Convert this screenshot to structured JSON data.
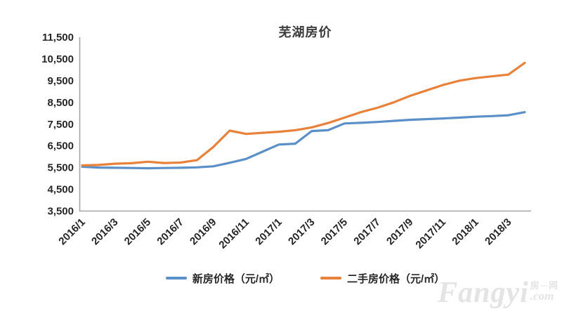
{
  "title": "芜湖房价",
  "watermark": {
    "brand": "Fangyi",
    "side_text": "房─网",
    "suffix": ".com"
  },
  "colors": {
    "axis": "#a6a6a6",
    "new_house": "#5b8fc7",
    "secondhand_house": "#e8813a",
    "text": "#262626"
  },
  "legend": {
    "items": [
      {
        "label": "新房价格（元/㎡）",
        "color": "#5b8fc7"
      },
      {
        "label": "二手房价格（元/㎡）",
        "color": "#e8813a"
      }
    ]
  },
  "chart_data": {
    "type": "line",
    "title": "芜湖房价",
    "xlabel": "",
    "ylabel": "",
    "ylim": [
      3500,
      11500
    ],
    "y_tick_step": 1000,
    "grid": false,
    "legend_position": "bottom",
    "y_tick_labels": [
      "3,500",
      "4,500",
      "5,500",
      "6,500",
      "7,500",
      "8,500",
      "9,500",
      "10,500",
      "11,500"
    ],
    "x_tick_labels": [
      "2016/1",
      "2016/3",
      "2016/5",
      "2016/7",
      "2016/9",
      "2016/11",
      "2017/1",
      "2017/3",
      "2017/5",
      "2017/7",
      "2017/9",
      "2017/11",
      "2018/1",
      "2018/3"
    ],
    "categories": [
      "2016/1",
      "2016/2",
      "2016/3",
      "2016/4",
      "2016/5",
      "2016/6",
      "2016/7",
      "2016/8",
      "2016/9",
      "2016/10",
      "2016/11",
      "2016/12",
      "2017/1",
      "2017/2",
      "2017/3",
      "2017/4",
      "2017/5",
      "2017/6",
      "2017/7",
      "2017/8",
      "2017/9",
      "2017/10",
      "2017/11",
      "2017/12",
      "2018/1",
      "2018/2",
      "2018/3",
      "2018/4"
    ],
    "series": [
      {
        "name": "新房价格（元/㎡）",
        "color": "#5b8fc7",
        "values": [
          5540,
          5500,
          5490,
          5480,
          5470,
          5480,
          5490,
          5510,
          5560,
          5720,
          5900,
          6230,
          6560,
          6600,
          7180,
          7220,
          7530,
          7560,
          7600,
          7650,
          7700,
          7730,
          7760,
          7800,
          7840,
          7870,
          7910,
          8050
        ]
      },
      {
        "name": "二手房价格（元/㎡）",
        "color": "#e8813a",
        "values": [
          5600,
          5620,
          5680,
          5700,
          5770,
          5710,
          5730,
          5840,
          6450,
          7200,
          7050,
          7100,
          7150,
          7220,
          7350,
          7550,
          7800,
          8050,
          8250,
          8500,
          8800,
          9050,
          9300,
          9500,
          9620,
          9700,
          9780,
          10320
        ]
      }
    ]
  }
}
